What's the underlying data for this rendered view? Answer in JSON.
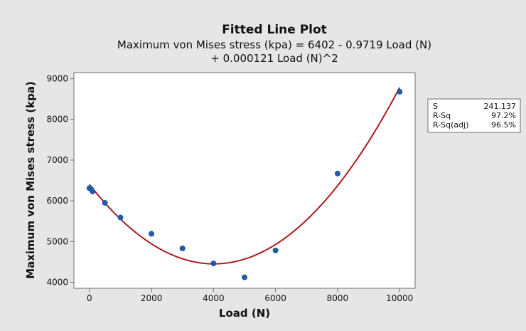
{
  "chart_data": {
    "type": "scatter",
    "title": "Fitted Line Plot",
    "subtitle_lines": [
      "Maximum von Mises stress (kpa) = 6402 - 0.9719 Load (N)",
      "+ 0.000121 Load (N)^2"
    ],
    "xlabel": "Load (N)",
    "ylabel": "Maximum von Mises stress (kpa)",
    "xlim": [
      -500,
      10500
    ],
    "ylim": [
      3850,
      9150
    ],
    "x_ticks": [
      0,
      2000,
      4000,
      6000,
      8000,
      10000
    ],
    "x_tick_labels": [
      "0",
      "2000",
      "4000",
      "6000",
      "8000",
      "10000"
    ],
    "y_ticks": [
      4000,
      5000,
      6000,
      7000,
      8000,
      9000
    ],
    "y_tick_labels": [
      "4000",
      "5000",
      "6000",
      "7000",
      "8000",
      "9000"
    ],
    "grid": false,
    "series": [
      {
        "kind": "points",
        "color": "#1f5aa6",
        "x": [
          0,
          50,
          100,
          500,
          1000,
          2000,
          3000,
          4000,
          5000,
          6000,
          8000,
          10000
        ],
        "y": [
          6310,
          6290,
          6230,
          5950,
          5590,
          5190,
          4830,
          4460,
          4120,
          4780,
          6670,
          8680
        ]
      },
      {
        "kind": "fit",
        "color": "#a81c1c",
        "intercept": 6402,
        "linear": -0.9719,
        "quadratic": 0.000121,
        "x_range": [
          0,
          10000
        ]
      }
    ],
    "stats": {
      "position": "right",
      "rows": [
        {
          "label": "S",
          "value": "241.137"
        },
        {
          "label": "R-Sq",
          "value": "97.2%"
        },
        {
          "label": "R-Sq(adj)",
          "value": "96.5%"
        }
      ]
    }
  }
}
